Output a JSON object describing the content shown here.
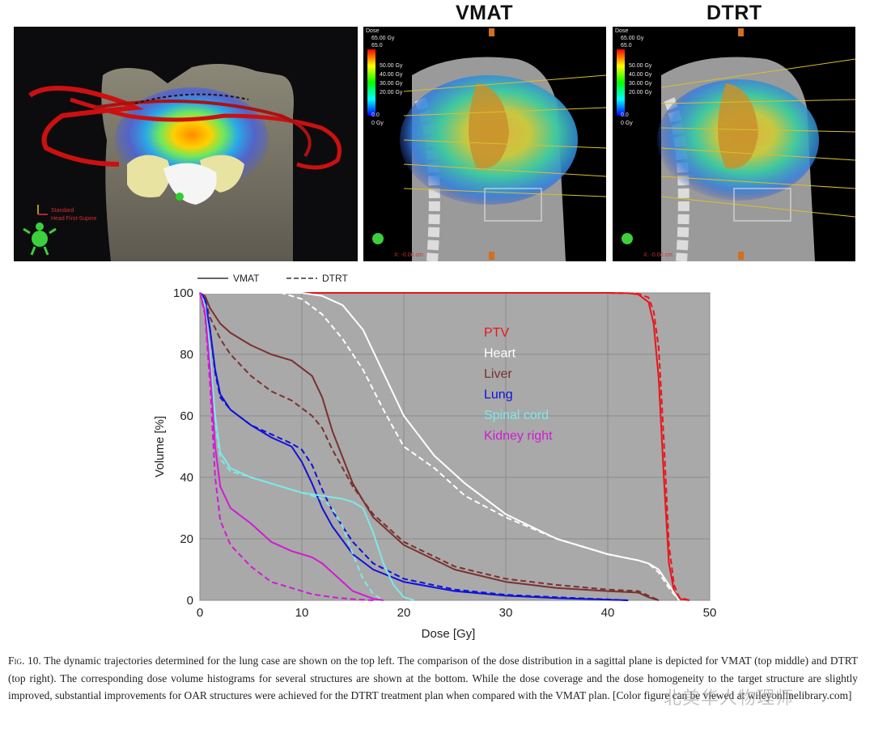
{
  "panels": {
    "vmat_title": "VMAT",
    "dtrt_title": "DTRT",
    "trajectory_legend": [
      "Standard",
      "Head First-Supine"
    ],
    "dose_bar": {
      "header": "Dose",
      "top_value": "65.00 Gy",
      "max": "65.0",
      "levels": [
        "50.00 Gy",
        "40.00 Gy",
        "30.00 Gy",
        "20.00 Gy"
      ],
      "low_value": "0.0",
      "bottom_value": "0 Gy"
    },
    "coord_readout": "X: -0.06 cm"
  },
  "chart_data": {
    "type": "line",
    "xlabel": "Dose [Gy]",
    "ylabel": "Volume [%]",
    "xlim": [
      0,
      50
    ],
    "ylim": [
      0,
      100
    ],
    "xticks": [
      0,
      10,
      20,
      30,
      40,
      50
    ],
    "yticks": [
      0,
      20,
      40,
      60,
      80,
      100
    ],
    "grid": true,
    "style_legend": [
      {
        "label": "VMAT",
        "dash": "solid"
      },
      {
        "label": "DTRT",
        "dash": "dashed"
      }
    ],
    "structure_legend_placement": "top-right",
    "structures": [
      {
        "name": "PTV",
        "color": "#e8161a"
      },
      {
        "name": "Heart",
        "color": "#ffffff"
      },
      {
        "name": "Liver",
        "color": "#7a3030"
      },
      {
        "name": "Lung",
        "color": "#1010dd"
      },
      {
        "name": "Spinal cord",
        "color": "#7fe8e8"
      },
      {
        "name": "Kidney right",
        "color": "#d21ad2"
      }
    ],
    "series": [
      {
        "structure": "PTV",
        "plan": "VMAT",
        "x": [
          0,
          40,
          42,
          43,
          44,
          44.5,
          45,
          45.5,
          46,
          46.5,
          47,
          48
        ],
        "y": [
          100,
          100,
          99.9,
          99.5,
          97,
          90,
          72,
          40,
          12,
          3,
          0.5,
          0
        ]
      },
      {
        "structure": "PTV",
        "plan": "DTRT",
        "x": [
          0,
          40,
          42,
          43,
          44,
          44.5,
          45,
          45.5,
          46,
          46.5,
          47,
          48
        ],
        "y": [
          100,
          100,
          99.9,
          99.7,
          98.5,
          94,
          82,
          52,
          18,
          5,
          1,
          0
        ]
      },
      {
        "structure": "Heart",
        "plan": "VMAT",
        "x": [
          0,
          10,
          12,
          14,
          16,
          18,
          20,
          23,
          26,
          30,
          35,
          40,
          43,
          44,
          45,
          46,
          47
        ],
        "y": [
          100,
          100,
          99,
          96,
          88,
          74,
          60,
          47,
          38,
          28,
          20,
          15,
          13,
          12,
          10,
          5,
          0
        ]
      },
      {
        "structure": "Heart",
        "plan": "DTRT",
        "x": [
          0,
          8,
          10,
          12,
          14,
          16,
          18,
          20,
          23,
          26,
          30,
          35,
          40,
          43,
          44,
          45,
          46,
          47
        ],
        "y": [
          100,
          100,
          98,
          93,
          85,
          75,
          62,
          50,
          43,
          34,
          27,
          20,
          15,
          13,
          12,
          9,
          4,
          0
        ]
      },
      {
        "structure": "Liver",
        "plan": "VMAT",
        "x": [
          0,
          0.5,
          1,
          2,
          3,
          5,
          7,
          9,
          11,
          12,
          13,
          15,
          17,
          20,
          25,
          30,
          35,
          40,
          43,
          44,
          45
        ],
        "y": [
          100,
          99,
          95,
          90,
          87,
          83,
          80,
          78,
          73,
          66,
          55,
          38,
          27,
          18,
          10,
          6,
          4,
          3,
          2.5,
          1,
          0
        ]
      },
      {
        "structure": "Liver",
        "plan": "DTRT",
        "x": [
          0,
          0.5,
          1,
          2,
          3,
          5,
          7,
          9,
          11,
          12,
          13,
          15,
          17,
          20,
          25,
          30,
          35,
          40,
          43,
          44,
          45
        ],
        "y": [
          100,
          98,
          92,
          85,
          80,
          73,
          68,
          65,
          60,
          56,
          49,
          37,
          28,
          19,
          11,
          7,
          5,
          3.5,
          3,
          1.5,
          0
        ]
      },
      {
        "structure": "Lung",
        "plan": "VMAT",
        "x": [
          0,
          0.5,
          1,
          1.5,
          2,
          3,
          5,
          7,
          9,
          10,
          11,
          12,
          13,
          15,
          17,
          20,
          25,
          30,
          35,
          40,
          42
        ],
        "y": [
          100,
          98,
          88,
          75,
          67,
          62,
          57,
          53,
          50,
          45,
          38,
          30,
          24,
          15,
          10,
          6,
          3,
          1.5,
          0.7,
          0.2,
          0
        ]
      },
      {
        "structure": "Lung",
        "plan": "DTRT",
        "x": [
          0,
          0.5,
          1,
          1.5,
          2,
          3,
          5,
          7,
          9,
          10,
          11,
          12,
          13,
          15,
          17,
          20,
          25,
          30,
          35,
          40,
          42
        ],
        "y": [
          100,
          98,
          88,
          74,
          66,
          62,
          57,
          54,
          51,
          49,
          44,
          36,
          29,
          19,
          12,
          7,
          3.5,
          1.8,
          1,
          0.3,
          0
        ]
      },
      {
        "structure": "Spinal cord",
        "plan": "VMAT",
        "x": [
          0,
          0.5,
          1,
          1.5,
          2,
          3,
          5,
          8,
          10,
          12,
          14,
          15,
          16,
          17,
          18,
          19,
          20,
          21
        ],
        "y": [
          100,
          96,
          80,
          60,
          48,
          43,
          40,
          37,
          35,
          34,
          33,
          32,
          30,
          22,
          12,
          5,
          1,
          0
        ]
      },
      {
        "structure": "Spinal cord",
        "plan": "DTRT",
        "x": [
          0,
          0.5,
          1,
          1.5,
          2,
          3,
          5,
          8,
          10,
          12,
          13,
          14,
          15,
          16,
          17,
          18
        ],
        "y": [
          100,
          96,
          80,
          58,
          46,
          42,
          40,
          37,
          35,
          33,
          30,
          24,
          15,
          7,
          2,
          0
        ]
      },
      {
        "structure": "Kidney right",
        "plan": "VMAT",
        "x": [
          0,
          0.5,
          1,
          1.5,
          2,
          3,
          5,
          7,
          9,
          11,
          12,
          13,
          15,
          17,
          18
        ],
        "y": [
          100,
          94,
          75,
          50,
          37,
          30,
          25,
          19,
          16,
          14,
          12,
          9,
          3,
          0.5,
          0
        ]
      },
      {
        "structure": "Kidney right",
        "plan": "DTRT",
        "x": [
          0,
          0.5,
          1,
          1.5,
          2,
          3,
          5,
          7,
          9,
          11,
          13,
          15,
          17
        ],
        "y": [
          100,
          93,
          70,
          40,
          26,
          18,
          11,
          6,
          4,
          2,
          1,
          0.4,
          0
        ]
      }
    ]
  },
  "caption": {
    "fig_label": "Fig. 10.",
    "text": "The dynamic trajectories determined for the lung case are shown on the top left. The comparison of the dose distribution in a sagittal plane is depicted for VMAT (top middle) and DTRT (top right). The corresponding dose volume histograms for several structures are shown at the bottom. While the dose coverage and the dose homogeneity to the target structure are slightly improved, substantial improvements for OAR structures were achieved for the DTRT treatment plan when compared with the VMAT plan. [Color figure can be viewed at wileyonlinelibrary.com]"
  },
  "watermark": "北美华人物理师"
}
